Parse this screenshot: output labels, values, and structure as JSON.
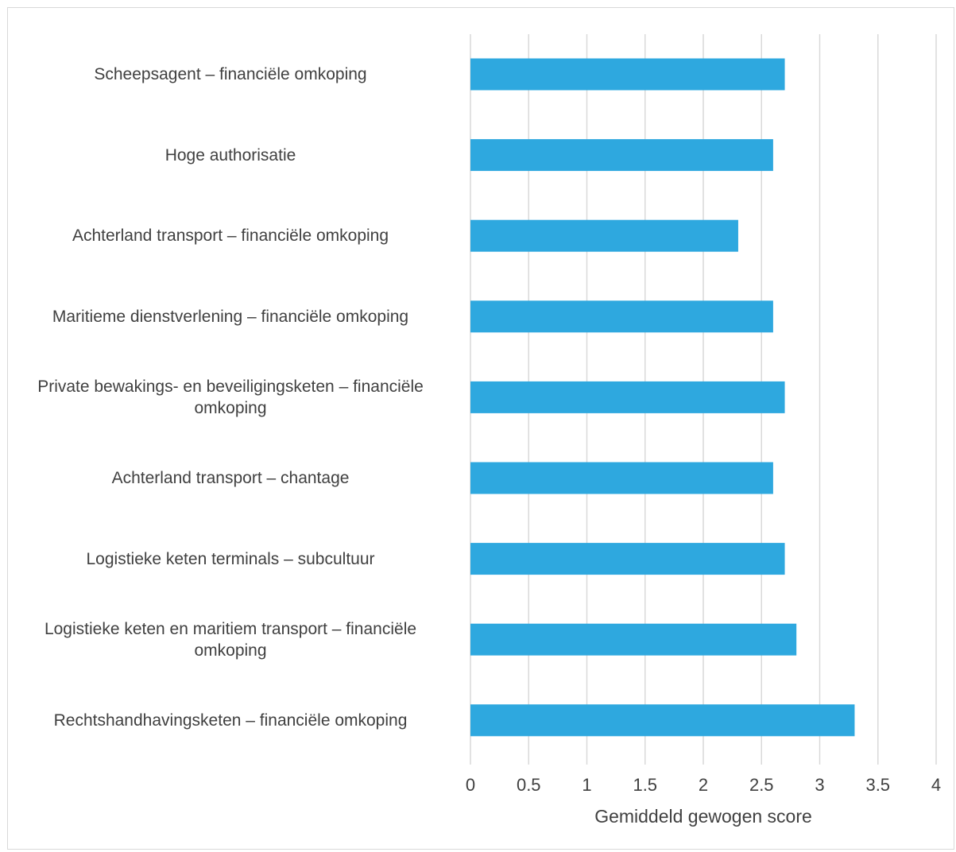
{
  "chart_data": {
    "type": "bar",
    "orientation": "horizontal",
    "categories": [
      "Scheepsagent – financiële omkoping",
      "Hoge authorisatie",
      "Achterland transport – financiële omkoping",
      "Maritieme dienstverlening – financiële omkoping",
      "Private bewakings- en beveiligingsketen – financiële omkoping",
      "Achterland transport – chantage",
      "Logistieke keten terminals – subcultuur",
      "Logistieke keten en maritiem transport – financiële omkoping",
      "Rechtshandhavingsketen – financiële omkoping"
    ],
    "values": [
      2.7,
      2.6,
      2.3,
      2.6,
      2.7,
      2.6,
      2.7,
      2.8,
      3.3
    ],
    "title": "",
    "xlabel": "Gemiddeld gewogen score",
    "ylabel": "",
    "xlim": [
      0,
      4
    ],
    "xticks": [
      "0",
      "0.5",
      "1",
      "1.5",
      "2",
      "2.5",
      "3",
      "3.5",
      "4"
    ],
    "grid": true,
    "bar_color": "#2EA8DF",
    "grid_color": "#d9d9d9"
  }
}
